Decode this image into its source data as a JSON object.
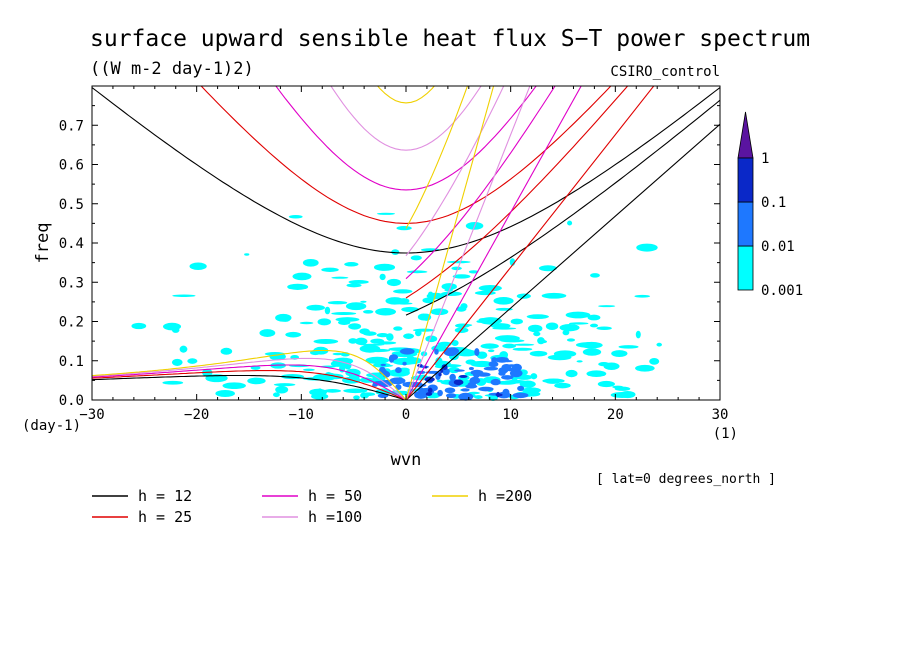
{
  "chart_data": {
    "type": "heatmap",
    "title": "surface upward sensible heat flux S−T power spectrum",
    "units": "((W m-2 day-1)2)",
    "source_label": "CSIRO_control",
    "xlabel": "wvn",
    "ylabel": "freq",
    "x_unit": "(1)",
    "y_unit": "(day-1)",
    "xlim": [
      -30,
      30
    ],
    "ylim": [
      0,
      0.8
    ],
    "x_ticks": [
      -30,
      -20,
      -10,
      0,
      10,
      20,
      30
    ],
    "x_tick_labels": [
      "−30",
      "−20",
      "−10",
      "0",
      "10",
      "20",
      "30"
    ],
    "y_ticks": [
      0,
      0.1,
      0.2,
      0.3,
      0.4,
      0.5,
      0.6,
      0.7
    ],
    "y_tick_labels": [
      "0.0",
      "0.1",
      "0.2",
      "0.3",
      "0.4",
      "0.5",
      "0.6",
      "0.7"
    ],
    "colorbar": {
      "levels": [
        "0.001",
        "0.01",
        "0.1",
        "1"
      ],
      "colors": [
        "#00ffff",
        "#1e78ff",
        "#0a28c8",
        "#5a14a0"
      ]
    },
    "annotation": "[ lat=0 degrees_north ]",
    "dispersion_curves": [
      {
        "label": "h = 12",
        "h": 12,
        "color": "#000000"
      },
      {
        "label": "h = 25",
        "h": 25,
        "color": "#e00000"
      },
      {
        "label": "h = 50",
        "h": 50,
        "color": "#e000c8"
      },
      {
        "label": "h =100",
        "h": 100,
        "color": "#e090e0"
      },
      {
        "label": "h =200",
        "h": 200,
        "color": "#f0d000"
      }
    ]
  }
}
